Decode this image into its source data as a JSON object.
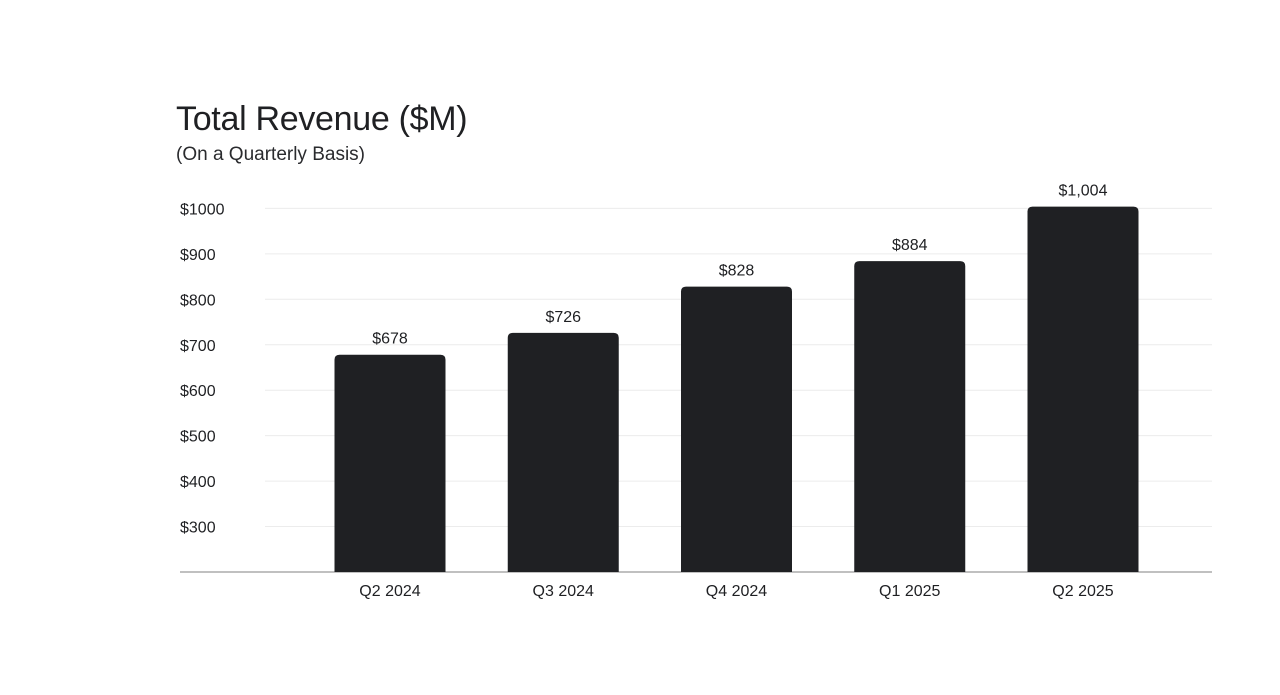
{
  "chart_data": {
    "type": "bar",
    "title": "Total Revenue ($M)",
    "subtitle": "(On a Quarterly Basis)",
    "categories": [
      "Q2 2024",
      "Q3 2024",
      "Q4 2024",
      "Q1 2025",
      "Q2 2025"
    ],
    "values": [
      678,
      726,
      828,
      884,
      1004
    ],
    "value_labels": [
      "$678",
      "$726",
      "$828",
      "$884",
      "$1,004"
    ],
    "y_ticks": [
      300,
      400,
      500,
      600,
      700,
      800,
      900,
      1000
    ],
    "y_tick_labels": [
      "$300",
      "$400",
      "$500",
      "$600",
      "$700",
      "$800",
      "$900",
      "$1000"
    ],
    "ylim": [
      200,
      1000
    ],
    "xlabel": "",
    "ylabel": "",
    "grid": true,
    "legend": "none",
    "colors": {
      "bar": "#1f2023",
      "text": "#1f2023",
      "grid": "#ececec",
      "baseline": "#9a9a9a"
    }
  }
}
